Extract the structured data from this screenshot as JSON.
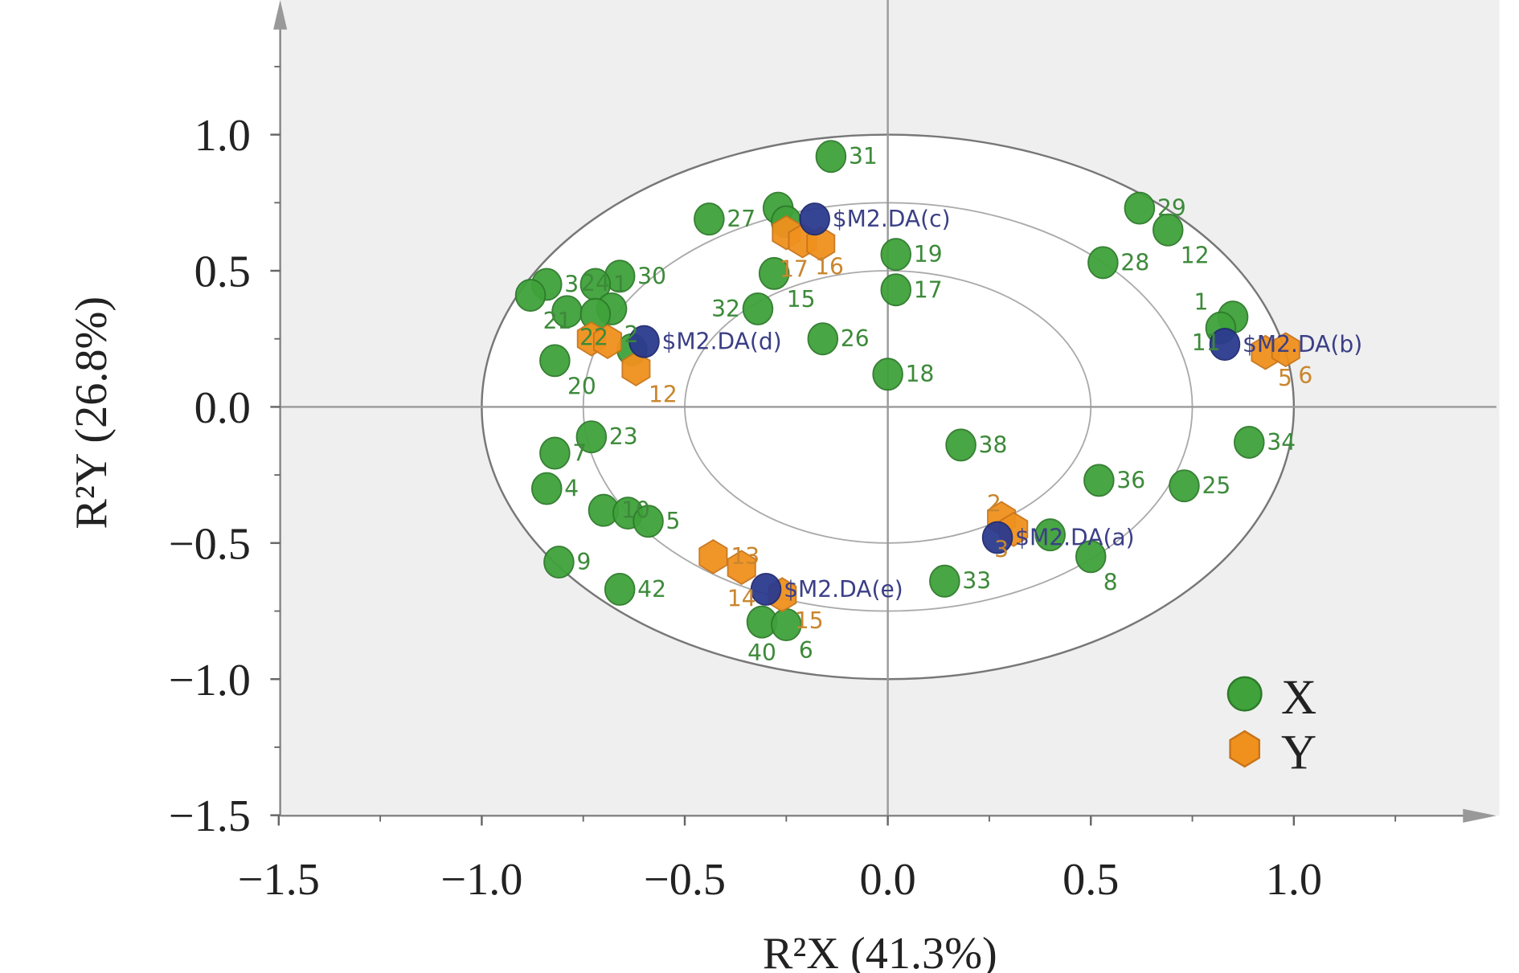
{
  "chart_data": {
    "type": "scatter",
    "xlabel": "R²X (41.3%)",
    "ylabel": "R²Y (26.8%)",
    "xlim": [
      -1.5,
      1.5
    ],
    "ylim": [
      -1.5,
      1.5
    ],
    "xticks": [
      "−1.5",
      "−1.0",
      "−0.5",
      "0.0",
      "0.5",
      "1.0"
    ],
    "xtick_values": [
      -1.5,
      -1.0,
      -0.5,
      0.0,
      0.5,
      1.0
    ],
    "yticks": [
      "−1.5",
      "−1.0",
      "−0.5",
      "0.0",
      "0.5",
      "1.0"
    ],
    "ytick_values": [
      -1.5,
      -1.0,
      -0.5,
      0.0,
      0.5,
      1.0
    ],
    "ellipse_radii": [
      1.0,
      0.75,
      0.5
    ],
    "legend_position": "bottom-right",
    "colors": {
      "X": "#3fa23a",
      "Y": "#f0911e",
      "DA": "#2c3a8f",
      "background": "#efefef"
    },
    "series": [
      {
        "name": "X",
        "marker": "circle",
        "points": [
          {
            "label": "31",
            "x": -0.14,
            "y": 0.92
          },
          {
            "label": "27",
            "x": -0.44,
            "y": 0.69
          },
          {
            "label": "",
            "x": -0.27,
            "y": 0.73
          },
          {
            "label": "",
            "x": -0.25,
            "y": 0.68
          },
          {
            "label": "29",
            "x": 0.62,
            "y": 0.73
          },
          {
            "label": "12",
            "x": 0.69,
            "y": 0.65
          },
          {
            "label": "28",
            "x": 0.53,
            "y": 0.53
          },
          {
            "label": "19",
            "x": 0.02,
            "y": 0.56
          },
          {
            "label": "17",
            "x": 0.02,
            "y": 0.43
          },
          {
            "label": "15",
            "x": -0.28,
            "y": 0.49
          },
          {
            "label": "32",
            "x": -0.32,
            "y": 0.36
          },
          {
            "label": "26",
            "x": -0.16,
            "y": 0.25
          },
          {
            "label": "18",
            "x": 0.0,
            "y": 0.12
          },
          {
            "label": "30",
            "x": -0.66,
            "y": 0.48
          },
          {
            "label": "3",
            "x": -0.84,
            "y": 0.45
          },
          {
            "label": "1",
            "x": -0.72,
            "y": 0.45
          },
          {
            "label": "21",
            "x": -0.88,
            "y": 0.41
          },
          {
            "label": "22",
            "x": -0.79,
            "y": 0.35
          },
          {
            "label": "2",
            "x": -0.68,
            "y": 0.36
          },
          {
            "label": "24",
            "x": -0.72,
            "y": 0.34
          },
          {
            "label": "",
            "x": -0.63,
            "y": 0.21
          },
          {
            "label": "20",
            "x": -0.82,
            "y": 0.17
          },
          {
            "label": "11",
            "x": 0.85,
            "y": 0.33
          },
          {
            "label": "1",
            "x": 0.82,
            "y": 0.29
          },
          {
            "label": "34",
            "x": 0.89,
            "y": -0.13
          },
          {
            "label": "38",
            "x": 0.18,
            "y": -0.14
          },
          {
            "label": "36",
            "x": 0.52,
            "y": -0.27
          },
          {
            "label": "25",
            "x": 0.73,
            "y": -0.29
          },
          {
            "label": "23",
            "x": -0.73,
            "y": -0.11
          },
          {
            "label": "7",
            "x": -0.82,
            "y": -0.17
          },
          {
            "label": "4",
            "x": -0.84,
            "y": -0.3
          },
          {
            "label": "10",
            "x": -0.7,
            "y": -0.38
          },
          {
            "label": "",
            "x": -0.64,
            "y": -0.39
          },
          {
            "label": "5",
            "x": -0.59,
            "y": -0.42
          },
          {
            "label": "9",
            "x": -0.81,
            "y": -0.57
          },
          {
            "label": "42",
            "x": -0.66,
            "y": -0.67
          },
          {
            "label": "40",
            "x": -0.31,
            "y": -0.79
          },
          {
            "label": "6",
            "x": -0.25,
            "y": -0.8
          },
          {
            "label": "33",
            "x": 0.14,
            "y": -0.64
          },
          {
            "label": "8",
            "x": 0.5,
            "y": -0.55
          },
          {
            "label": "",
            "x": 0.4,
            "y": -0.47
          }
        ]
      },
      {
        "name": "Y",
        "marker": "hexagon",
        "points": [
          {
            "label": "",
            "x": -0.25,
            "y": 0.64
          },
          {
            "label": "16",
            "x": -0.21,
            "y": 0.61
          },
          {
            "label": "17",
            "x": -0.165,
            "y": 0.6
          },
          {
            "label": "",
            "x": -0.73,
            "y": 0.25
          },
          {
            "label": "",
            "x": -0.69,
            "y": 0.24
          },
          {
            "label": "12",
            "x": -0.62,
            "y": 0.14
          },
          {
            "label": "5",
            "x": 0.93,
            "y": 0.2
          },
          {
            "label": "6",
            "x": 0.98,
            "y": 0.21
          },
          {
            "label": "3",
            "x": 0.28,
            "y": -0.41
          },
          {
            "label": "2",
            "x": 0.31,
            "y": -0.45
          },
          {
            "label": "13",
            "x": -0.43,
            "y": -0.55
          },
          {
            "label": "14",
            "x": -0.36,
            "y": -0.59
          },
          {
            "label": "15",
            "x": -0.26,
            "y": -0.69
          }
        ]
      },
      {
        "marker": "circle-dark",
        "points": [
          {
            "label": "$M2.DA(c)",
            "x": -0.18,
            "y": 0.69
          },
          {
            "label": "$M2.DA(d)",
            "x": -0.6,
            "y": 0.24
          },
          {
            "label": "$M2.DA(b)",
            "x": 0.83,
            "y": 0.23
          },
          {
            "label": "$M2.DA(a)",
            "x": 0.27,
            "y": -0.48
          },
          {
            "label": "$M2.DA(e)",
            "x": -0.3,
            "y": -0.67
          }
        ]
      }
    ],
    "legend": [
      {
        "label": "X",
        "marker": "circle"
      },
      {
        "label": "Y",
        "marker": "hexagon"
      }
    ]
  }
}
